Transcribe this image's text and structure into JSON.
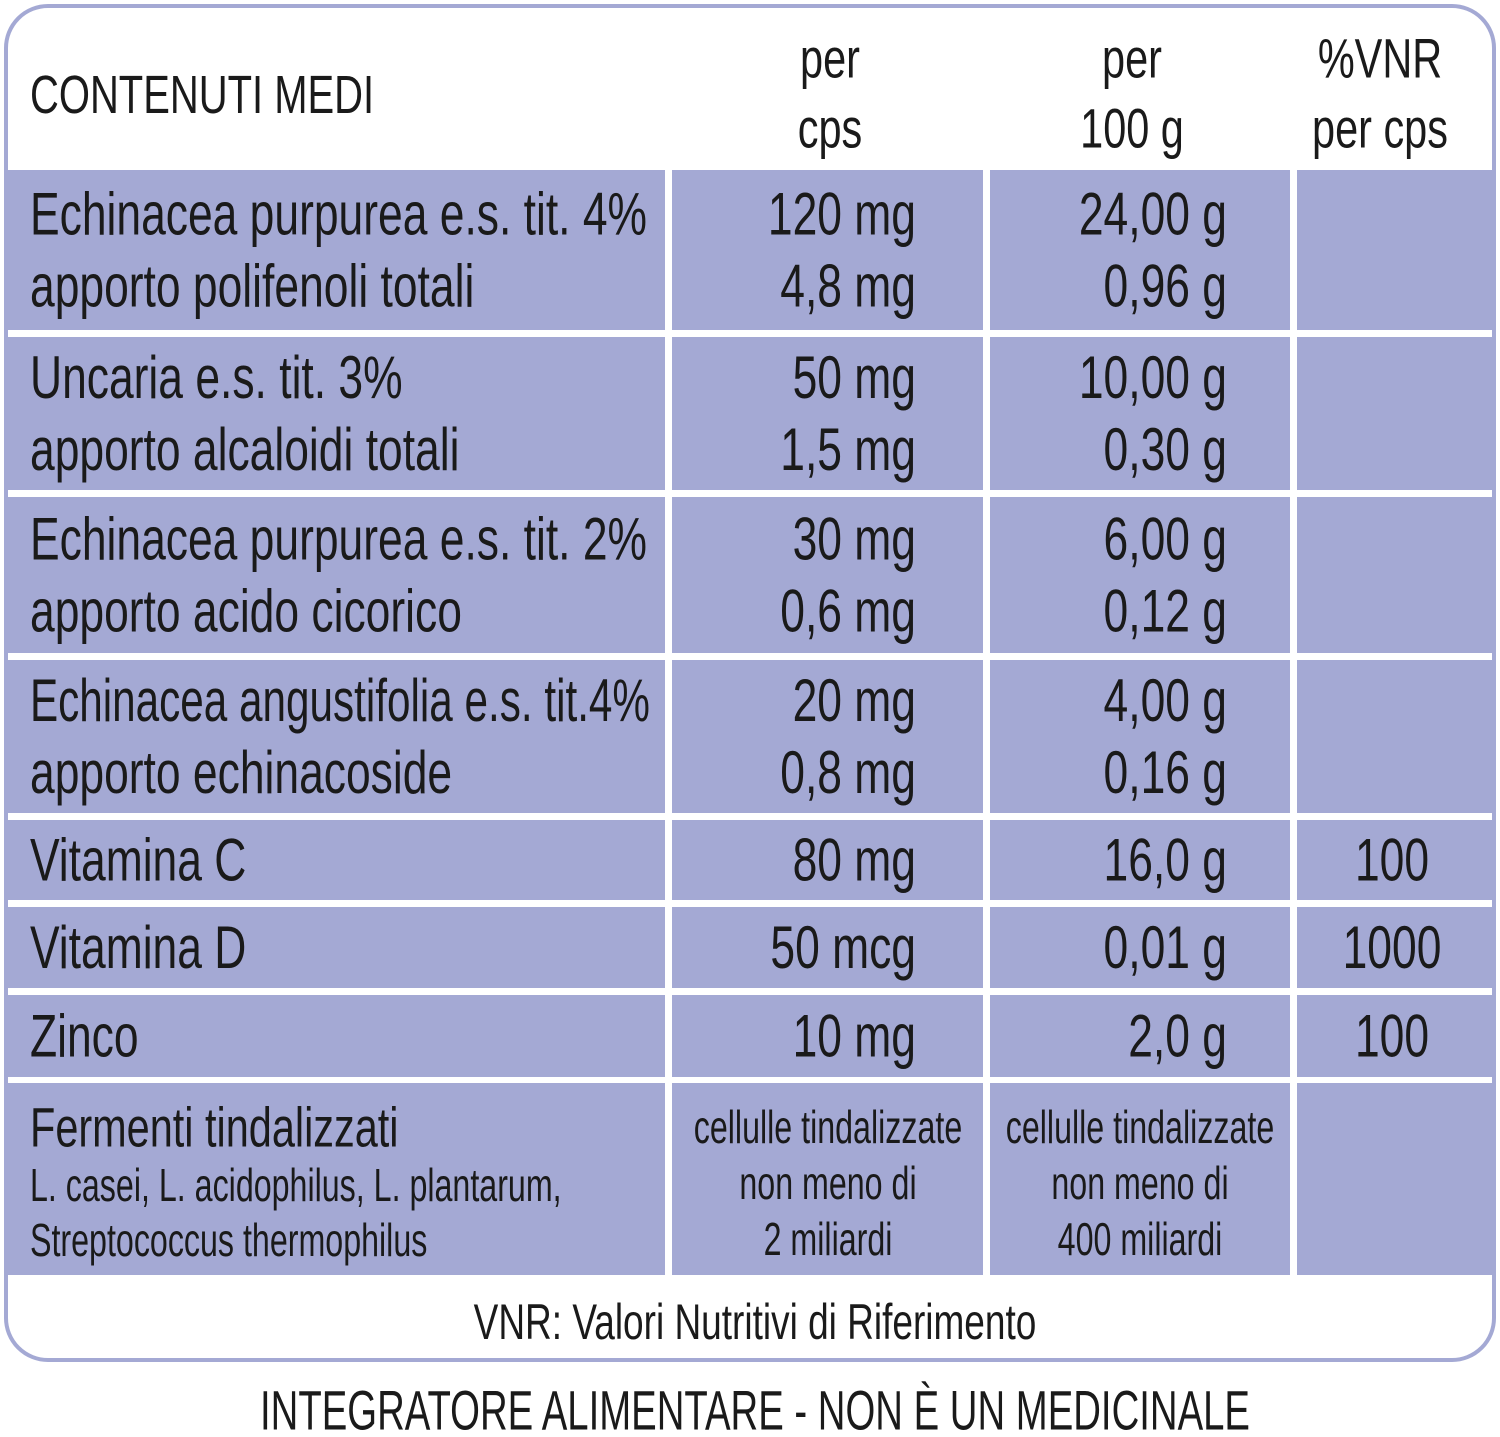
{
  "header": {
    "title": "CONTENUTI MEDI",
    "per_cps": [
      "per",
      "cps"
    ],
    "per_100g": [
      "per",
      "100 g"
    ],
    "vnr": [
      "%VNR",
      "per cps"
    ]
  },
  "table": {
    "rows": [
      {
        "name": [
          "Echinacea purpurea e.s. tit. 4%",
          "apporto polifenoli totali"
        ],
        "per_cps": [
          "120 mg",
          "4,8 mg"
        ],
        "per_100g": [
          "24,00 g",
          "0,96 g"
        ]
      },
      {
        "name": [
          "Uncaria e.s. tit. 3%",
          "apporto  alcaloidi totali"
        ],
        "per_cps": [
          "50 mg",
          "1,5 mg"
        ],
        "per_100g": [
          "10,00 g",
          "0,30 g"
        ]
      },
      {
        "name": [
          "Echinacea purpurea e.s. tit. 2%",
          "apporto acido cicorico"
        ],
        "per_cps": [
          "30 mg",
          "0,6 mg"
        ],
        "per_100g": [
          "6,00 g",
          "0,12 g"
        ]
      },
      {
        "name": [
          "Echinacea angustifolia e.s. tit.4%",
          "apporto echinacoside"
        ],
        "per_cps": [
          "20 mg",
          "0,8 mg"
        ],
        "per_100g": [
          "4,00 g",
          "0,16 g"
        ]
      },
      {
        "name": [
          "Vitamina C"
        ],
        "per_cps": [
          "80 mg"
        ],
        "per_100g": [
          "16,0 g"
        ],
        "vnr": "100"
      },
      {
        "name": [
          "Vitamina D"
        ],
        "per_cps": [
          "50 mcg"
        ],
        "per_100g": [
          "0,01 g"
        ],
        "vnr": "1000"
      },
      {
        "name": [
          "Zinco"
        ],
        "per_cps": [
          "10 mg"
        ],
        "per_100g": [
          "2,0 g"
        ],
        "vnr": "100"
      },
      {
        "name": [
          "Fermenti tindalizzati",
          "L. casei, L. acidophilus, L. plantarum,",
          "Streptococcus thermophilus"
        ],
        "per_cps": [
          "cellulle tindalizzate",
          "non meno di",
          "2 miliardi"
        ],
        "per_100g": [
          "cellulle tindalizzate",
          "non meno di",
          "400 miliardi"
        ]
      }
    ]
  },
  "note": "VNR: Valori Nutritivi di Riferimento",
  "footer": "INTEGRATORE ALIMENTARE - NON È UN MEDICINALE"
}
